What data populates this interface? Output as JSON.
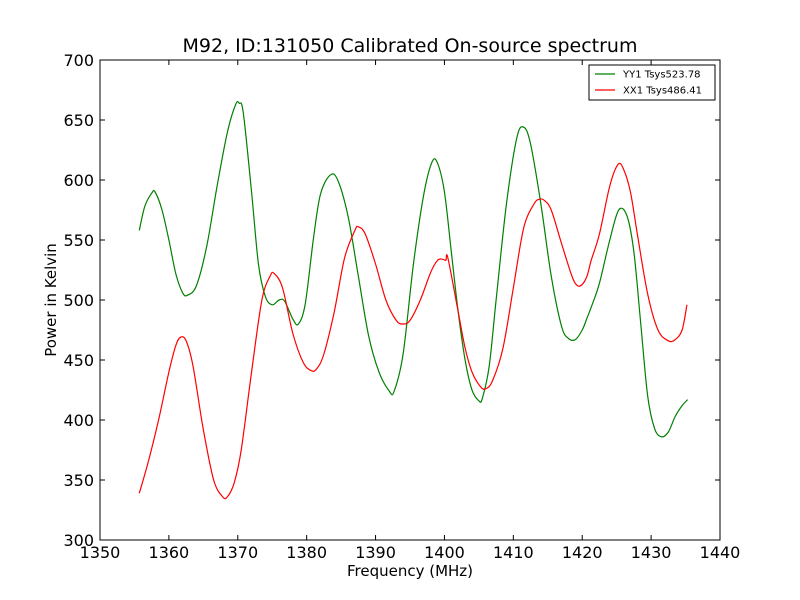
{
  "chart_data": {
    "type": "line",
    "title": "M92, ID:131050 Calibrated On-source spectrum",
    "xlabel": "Frequency (MHz)",
    "ylabel": "Power in Kelvin",
    "xlim": [
      1350,
      1440
    ],
    "ylim": [
      300,
      700
    ],
    "xticks": [
      1350,
      1360,
      1370,
      1380,
      1390,
      1400,
      1410,
      1420,
      1430,
      1440
    ],
    "yticks": [
      300,
      350,
      400,
      450,
      500,
      550,
      600,
      650,
      700
    ],
    "grid": false,
    "legend_position": "top-right",
    "series": [
      {
        "name": "YY1 Tsys523.78",
        "color": "#008000",
        "x": [
          1355.7,
          1356.5,
          1357.5,
          1358.0,
          1359.0,
          1360.0,
          1361.0,
          1362.0,
          1362.7,
          1364.0,
          1365.5,
          1367.0,
          1368.5,
          1369.7,
          1370.2,
          1370.8,
          1372.0,
          1373.0,
          1374.0,
          1375.0,
          1376.0,
          1376.8,
          1378.0,
          1378.8,
          1379.8,
          1381.0,
          1382.0,
          1383.4,
          1384.5,
          1386.0,
          1387.5,
          1389.0,
          1390.5,
          1392.0,
          1392.7,
          1394.0,
          1395.5,
          1397.0,
          1398.2,
          1399.0,
          1400.0,
          1401.0,
          1402.0,
          1403.0,
          1404.0,
          1405.0,
          1405.5,
          1406.5,
          1407.5,
          1409.0,
          1410.5,
          1411.5,
          1412.5,
          1414.0,
          1415.5,
          1417.0,
          1418.0,
          1419.0,
          1420.0,
          1420.7,
          1421.5,
          1422.5,
          1424.0,
          1425.3,
          1426.5,
          1427.5,
          1428.5,
          1429.5,
          1430.5,
          1431.5,
          1432.5,
          1433.5,
          1434.5,
          1435.3
        ],
        "values": [
          558,
          578,
          589,
          590,
          575,
          550,
          522,
          506,
          504,
          512,
          545,
          595,
          640,
          663,
          664,
          656,
          590,
          530,
          503,
          496,
          500,
          499,
          484,
          480,
          497,
          552,
          588,
          604,
          600,
          570,
          520,
          470,
          440,
          424,
          424,
          455,
          530,
          588,
          615,
          614,
          590,
          540,
          490,
          450,
          425,
          416,
          418,
          445,
          500,
          580,
          635,
          644,
          630,
          580,
          520,
          478,
          468,
          467,
          475,
          485,
          497,
          514,
          550,
          575,
          570,
          540,
          480,
          420,
          393,
          386,
          390,
          403,
          412,
          417
        ]
      },
      {
        "name": "XX1 Tsys486.41",
        "color": "#ff0000",
        "x": [
          1355.7,
          1357.0,
          1358.5,
          1360.0,
          1361.0,
          1361.7,
          1362.5,
          1363.5,
          1365.0,
          1366.5,
          1367.8,
          1368.5,
          1369.5,
          1370.5,
          1372.0,
          1373.5,
          1374.7,
          1375.3,
          1376.5,
          1378.0,
          1379.5,
          1380.7,
          1381.5,
          1382.5,
          1384.0,
          1385.5,
          1387.0,
          1387.5,
          1388.5,
          1390.0,
          1391.5,
          1393.0,
          1394.0,
          1395.0,
          1396.5,
          1398.0,
          1399.0,
          1399.7,
          1400.2,
          1400.5,
          1402.0,
          1403.0,
          1404.0,
          1405.2,
          1406.0,
          1407.0,
          1408.5,
          1410.0,
          1411.5,
          1413.0,
          1413.8,
          1414.5,
          1415.5,
          1417.0,
          1418.5,
          1419.3,
          1420.0,
          1420.7,
          1421.3,
          1422.5,
          1424.0,
          1425.2,
          1426.0,
          1427.0,
          1428.0,
          1429.5,
          1431.0,
          1432.5,
          1433.5,
          1434.5,
          1435.2
        ],
        "values": [
          339,
          365,
          400,
          440,
          462,
          469,
          466,
          445,
          392,
          350,
          336,
          336,
          348,
          375,
          440,
          500,
          520,
          522,
          510,
          472,
          448,
          441,
          443,
          455,
          490,
          535,
          558,
          561,
          555,
          530,
          500,
          483,
          480,
          483,
          500,
          523,
          533,
          534,
          533,
          535,
          490,
          460,
          440,
          428,
          426,
          433,
          460,
          510,
          560,
          580,
          584,
          583,
          575,
          547,
          520,
          512,
          513,
          520,
          533,
          555,
          595,
          613,
          609,
          590,
          555,
          505,
          475,
          466,
          467,
          475,
          496
        ]
      }
    ]
  }
}
